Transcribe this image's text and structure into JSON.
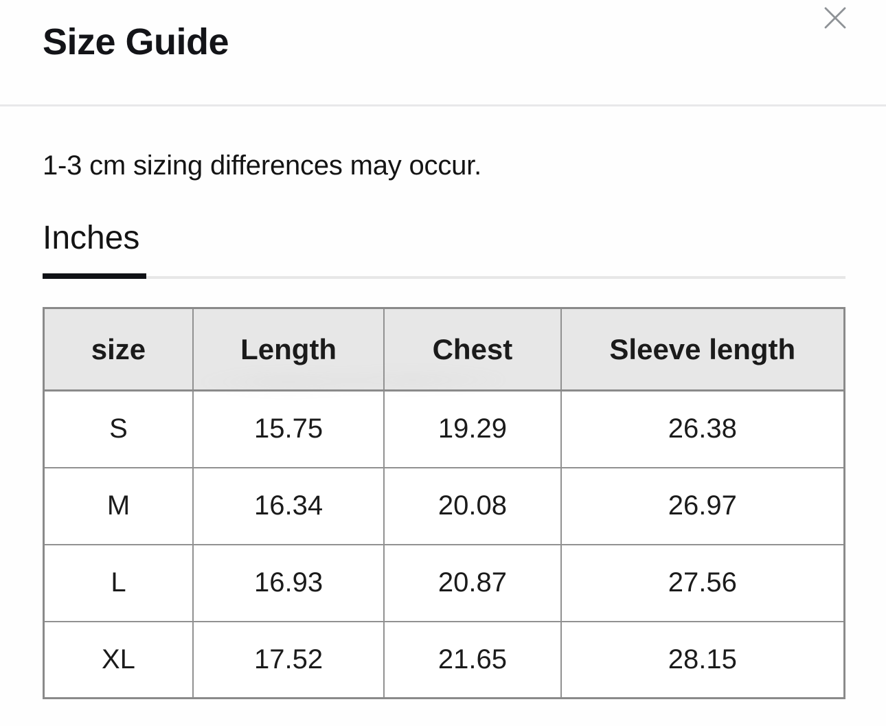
{
  "modal": {
    "title": "Size Guide",
    "close_icon": "close-x"
  },
  "note": "1-3 cm sizing differences may occur.",
  "tabs": {
    "items": [
      {
        "label": "Inches",
        "active": true
      }
    ],
    "active_label": "Inches"
  },
  "size_table": {
    "headers": [
      "size",
      "Length",
      "Chest",
      "Sleeve length"
    ],
    "rows": [
      [
        "S",
        "15.75",
        "19.29",
        "26.38"
      ],
      [
        "M",
        "16.34",
        "20.08",
        "26.97"
      ],
      [
        "L",
        "16.93",
        "20.87",
        "27.56"
      ],
      [
        "XL",
        "17.52",
        "21.65",
        "28.15"
      ]
    ]
  },
  "colors": {
    "header_bg": "#e7e7e7",
    "table_border": "#8a8a8a",
    "cell_border": "#919191",
    "tab_indicator": "#101216",
    "tab_track": "#e7e7e7",
    "divider": "#e8e8ea",
    "close_icon": "#8e9296",
    "text": "#141414"
  }
}
